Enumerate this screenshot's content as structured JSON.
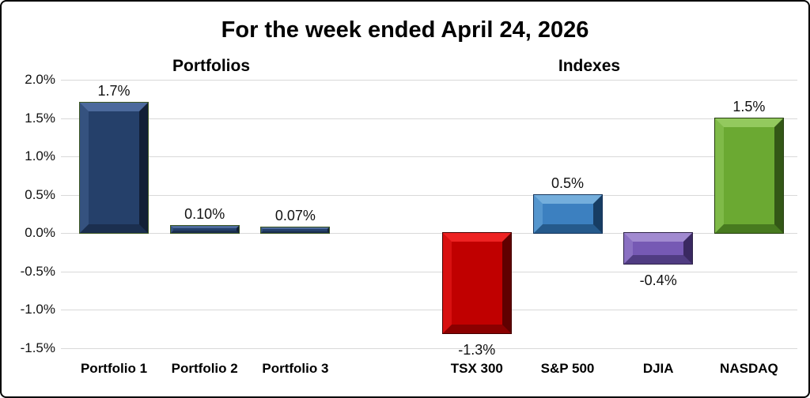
{
  "title": "For the week ended April 24, 2026",
  "section_headers": {
    "left": "Portfolios",
    "right": "Indexes"
  },
  "chart_data": {
    "type": "bar",
    "title": "For the week ended April 24, 2026",
    "group_labels": [
      "Portfolios",
      "Indexes"
    ],
    "categories": [
      "Portfolio 1",
      "Portfolio 2",
      "Portfolio 3",
      "TSX 300",
      "S&P 500",
      "DJIA",
      "NASDAQ"
    ],
    "groups": [
      "Portfolios",
      "Portfolios",
      "Portfolios",
      "Indexes",
      "Indexes",
      "Indexes",
      "Indexes"
    ],
    "values": [
      1.7,
      0.1,
      0.07,
      -1.3,
      0.5,
      -0.4,
      1.5
    ],
    "value_labels": [
      "1.7%",
      "0.10%",
      "0.07%",
      "-1.3%",
      "0.5%",
      "-0.4%",
      "1.5%"
    ],
    "ylim": [
      -1.5,
      2.0
    ],
    "ytick_step": 0.5,
    "yticks": [
      "2.0%",
      "1.5%",
      "1.0%",
      "0.5%",
      "0.0%",
      "-0.5%",
      "-1.0%",
      "-1.5%"
    ],
    "grid": true,
    "legend": "none",
    "gridline_color": "#D9D9D9",
    "text_color": "#000000",
    "bar_styles": [
      {
        "fill": "#25406A",
        "light": "#4C6A9C",
        "light2": "#35527F",
        "dark": "#122036",
        "dark2": "#1B2F4F",
        "outline": "#3E5822"
      },
      {
        "fill": "#25406A",
        "light": "#4C6A9C",
        "light2": "#35527F",
        "dark": "#122036",
        "dark2": "#1B2F4F",
        "outline": "#3E5822"
      },
      {
        "fill": "#25406A",
        "light": "#4C6A9C",
        "light2": "#35527F",
        "dark": "#122036",
        "dark2": "#1B2F4F",
        "outline": "#3E5822"
      },
      {
        "fill": "#C00000",
        "light": "#EE2222",
        "light2": "#D81010",
        "dark": "#600000",
        "dark2": "#8A0000",
        "outline": "#450000"
      },
      {
        "fill": "#3C80C0",
        "light": "#74AEDC",
        "light2": "#5596CE",
        "dark": "#173D63",
        "dark2": "#255A8C",
        "outline": "#17365D"
      },
      {
        "fill": "#7659B4",
        "light": "#A18AD0",
        "light2": "#8A70C2",
        "dark": "#3A2961",
        "dark2": "#503C82",
        "outline": "#2E2348"
      },
      {
        "fill": "#6BA932",
        "light": "#93C95E",
        "light2": "#7FBA48",
        "dark": "#335716",
        "dark2": "#477A1F",
        "outline": "#243E0E"
      }
    ]
  }
}
